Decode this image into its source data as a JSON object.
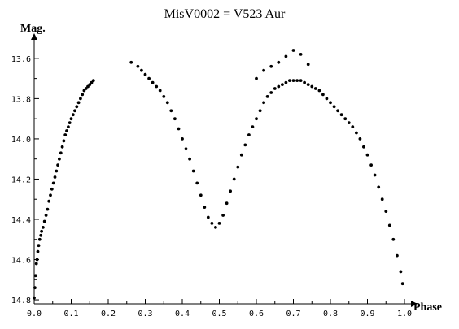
{
  "chart_data": {
    "type": "scatter",
    "title": "MisV0002 = V523 Aur",
    "xlabel": "Phase",
    "ylabel": "Mag.",
    "xlim": [
      0.0,
      1.0
    ],
    "ylim": [
      14.8,
      13.5
    ],
    "y_inverted": true,
    "grid": false,
    "x_ticks": [
      "0.0",
      "0.1",
      "0.2",
      "0.3",
      "0.4",
      "0.5",
      "0.6",
      "0.7",
      "0.8",
      "0.9",
      "1.0"
    ],
    "y_ticks": [
      "13.6",
      "13.8",
      "14.0",
      "14.2",
      "14.4",
      "14.6",
      "14.8"
    ],
    "point_color": "#000000",
    "points": [
      [
        0.0,
        14.79
      ],
      [
        0.002,
        14.74
      ],
      [
        0.004,
        14.68
      ],
      [
        0.006,
        14.62
      ],
      [
        0.008,
        14.6
      ],
      [
        0.01,
        14.56
      ],
      [
        0.012,
        14.53
      ],
      [
        0.015,
        14.5
      ],
      [
        0.018,
        14.48
      ],
      [
        0.02,
        14.46
      ],
      [
        0.024,
        14.44
      ],
      [
        0.028,
        14.41
      ],
      [
        0.032,
        14.38
      ],
      [
        0.036,
        14.35
      ],
      [
        0.04,
        14.31
      ],
      [
        0.044,
        14.28
      ],
      [
        0.048,
        14.25
      ],
      [
        0.052,
        14.22
      ],
      [
        0.056,
        14.19
      ],
      [
        0.06,
        14.16
      ],
      [
        0.064,
        14.13
      ],
      [
        0.068,
        14.1
      ],
      [
        0.072,
        14.07
      ],
      [
        0.076,
        14.04
      ],
      [
        0.08,
        14.01
      ],
      [
        0.084,
        13.98
      ],
      [
        0.088,
        13.96
      ],
      [
        0.092,
        13.94
      ],
      [
        0.096,
        13.92
      ],
      [
        0.1,
        13.9
      ],
      [
        0.105,
        13.88
      ],
      [
        0.11,
        13.86
      ],
      [
        0.115,
        13.84
      ],
      [
        0.12,
        13.82
      ],
      [
        0.125,
        13.8
      ],
      [
        0.13,
        13.78
      ],
      [
        0.135,
        13.76
      ],
      [
        0.14,
        13.75
      ],
      [
        0.145,
        13.74
      ],
      [
        0.15,
        13.73
      ],
      [
        0.155,
        13.72
      ],
      [
        0.16,
        13.71
      ],
      [
        0.262,
        13.62
      ],
      [
        0.28,
        13.64
      ],
      [
        0.29,
        13.66
      ],
      [
        0.3,
        13.68
      ],
      [
        0.31,
        13.7
      ],
      [
        0.32,
        13.72
      ],
      [
        0.33,
        13.74
      ],
      [
        0.34,
        13.76
      ],
      [
        0.35,
        13.79
      ],
      [
        0.36,
        13.82
      ],
      [
        0.37,
        13.86
      ],
      [
        0.38,
        13.9
      ],
      [
        0.39,
        13.95
      ],
      [
        0.4,
        14.0
      ],
      [
        0.41,
        14.05
      ],
      [
        0.42,
        14.1
      ],
      [
        0.43,
        14.16
      ],
      [
        0.44,
        14.22
      ],
      [
        0.45,
        14.28
      ],
      [
        0.46,
        14.34
      ],
      [
        0.47,
        14.39
      ],
      [
        0.48,
        14.42
      ],
      [
        0.49,
        14.44
      ],
      [
        0.5,
        14.42
      ],
      [
        0.51,
        14.38
      ],
      [
        0.52,
        14.32
      ],
      [
        0.53,
        14.26
      ],
      [
        0.54,
        14.2
      ],
      [
        0.55,
        14.14
      ],
      [
        0.56,
        14.08
      ],
      [
        0.57,
        14.03
      ],
      [
        0.58,
        13.98
      ],
      [
        0.59,
        13.94
      ],
      [
        0.6,
        13.9
      ],
      [
        0.61,
        13.86
      ],
      [
        0.62,
        13.82
      ],
      [
        0.63,
        13.79
      ],
      [
        0.64,
        13.77
      ],
      [
        0.65,
        13.75
      ],
      [
        0.66,
        13.74
      ],
      [
        0.67,
        13.73
      ],
      [
        0.68,
        13.72
      ],
      [
        0.69,
        13.71
      ],
      [
        0.7,
        13.71
      ],
      [
        0.71,
        13.71
      ],
      [
        0.72,
        13.71
      ],
      [
        0.73,
        13.72
      ],
      [
        0.74,
        13.73
      ],
      [
        0.75,
        13.74
      ],
      [
        0.76,
        13.75
      ],
      [
        0.77,
        13.76
      ],
      [
        0.78,
        13.78
      ],
      [
        0.79,
        13.8
      ],
      [
        0.8,
        13.82
      ],
      [
        0.81,
        13.84
      ],
      [
        0.82,
        13.86
      ],
      [
        0.83,
        13.88
      ],
      [
        0.84,
        13.9
      ],
      [
        0.85,
        13.92
      ],
      [
        0.86,
        13.94
      ],
      [
        0.87,
        13.97
      ],
      [
        0.88,
        14.0
      ],
      [
        0.89,
        14.04
      ],
      [
        0.9,
        14.08
      ],
      [
        0.91,
        14.13
      ],
      [
        0.92,
        14.18
      ],
      [
        0.93,
        14.24
      ],
      [
        0.94,
        14.3
      ],
      [
        0.95,
        14.36
      ],
      [
        0.96,
        14.43
      ],
      [
        0.97,
        14.5
      ],
      [
        0.98,
        14.58
      ],
      [
        0.99,
        14.66
      ],
      [
        0.995,
        14.72
      ],
      [
        0.6,
        13.7
      ],
      [
        0.62,
        13.66
      ],
      [
        0.64,
        13.64
      ],
      [
        0.66,
        13.62
      ],
      [
        0.68,
        13.59
      ],
      [
        0.7,
        13.56
      ],
      [
        0.72,
        13.58
      ],
      [
        0.74,
        13.63
      ]
    ]
  }
}
